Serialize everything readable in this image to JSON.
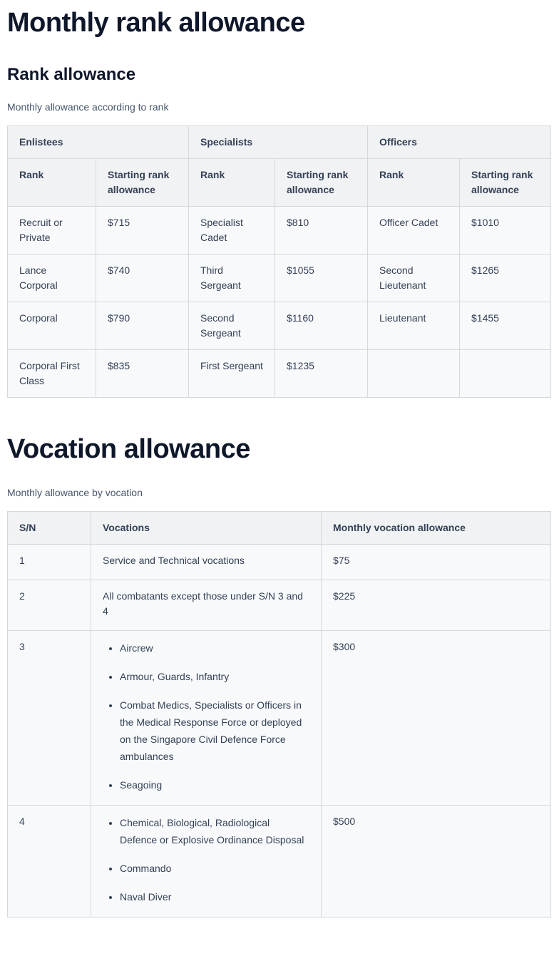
{
  "rank_section": {
    "title": "Monthly rank allowance",
    "subtitle": "Rank allowance",
    "caption": "Monthly allowance according to rank",
    "groups": [
      "Enlistees",
      "Specialists",
      "Officers"
    ],
    "subheaders": [
      "Rank",
      "Starting rank allowance",
      "Rank",
      "Starting rank allowance",
      "Rank",
      "Starting rank allowance"
    ],
    "rows": [
      [
        "Recruit or Private",
        "$715",
        "Specialist Cadet",
        "$810",
        "Officer Cadet",
        "$1010"
      ],
      [
        "Lance Corporal",
        "$740",
        "Third Sergeant",
        "$1055",
        "Second Lieutenant",
        "$1265"
      ],
      [
        "Corporal",
        "$790",
        "Second Sergeant",
        "$1160",
        "Lieutenant",
        "$1455"
      ],
      [
        "Corporal First Class",
        "$835",
        "First Sergeant",
        "$1235",
        "",
        ""
      ]
    ]
  },
  "vocation_section": {
    "title": "Vocation allowance",
    "caption": "Monthly allowance by vocation",
    "headers": [
      "S/N",
      "Vocations",
      "Monthly vocation allowance"
    ],
    "rows": [
      {
        "sn": "1",
        "text": "Service and Technical vocations",
        "items": [],
        "amount": "$75"
      },
      {
        "sn": "2",
        "text": "All combatants except those under S/N 3 and 4",
        "items": [],
        "amount": "$225"
      },
      {
        "sn": "3",
        "text": "",
        "items": [
          "Aircrew",
          "Armour, Guards, Infantry",
          "Combat Medics, Specialists or Officers in the Medical Response Force or deployed on the Singapore Civil Defence Force ambulances",
          "Seagoing"
        ],
        "amount": "$300"
      },
      {
        "sn": "4",
        "text": "",
        "items": [
          "Chemical, Biological, Radiological Defence or Explosive Ordinance Disposal",
          "Commando",
          "Naval Diver"
        ],
        "amount": "$500"
      }
    ]
  }
}
